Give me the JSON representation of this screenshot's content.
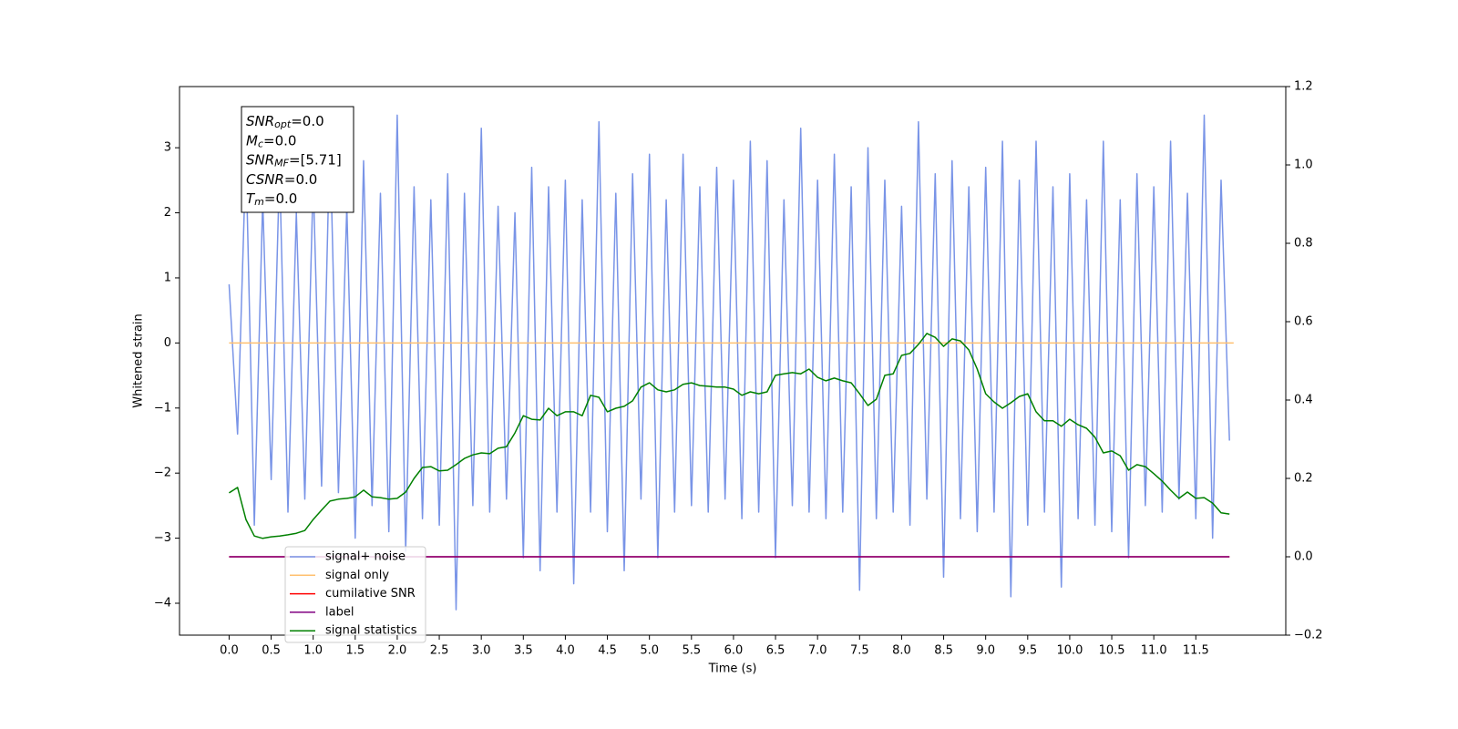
{
  "chart_data": {
    "type": "line",
    "xlabel": "Time (s)",
    "ylabel": "Whitened strain",
    "xlim": [
      -0.59,
      12.57
    ],
    "ylim": [
      -4.49,
      3.94
    ],
    "y2lim": [
      -0.2,
      1.2
    ],
    "xticks": [
      {
        "value": 0,
        "label": "0.0"
      },
      0.5,
      {
        "value": 1,
        "label": "1.0"
      },
      1.5,
      {
        "value": 2,
        "label": "2.0"
      },
      2.5,
      {
        "value": 3,
        "label": "3.0"
      },
      3.5,
      {
        "value": 4,
        "label": "4.0"
      },
      4.5,
      {
        "value": 5,
        "label": "5.0"
      },
      5.5,
      {
        "value": 6,
        "label": "6.0"
      },
      6.5,
      {
        "value": 7,
        "label": "7.0"
      },
      7.5,
      {
        "value": 8,
        "label": "8.0"
      },
      8.5,
      {
        "value": 9,
        "label": "9.0"
      },
      9.5,
      {
        "value": 10,
        "label": "10.0"
      },
      10.5,
      {
        "value": 11,
        "label": "11.0"
      },
      11.5
    ],
    "yticks": [
      {
        "value": -4,
        "label": "−4"
      },
      {
        "value": -3,
        "label": "−3"
      },
      {
        "value": -2,
        "label": "−2"
      },
      {
        "value": -1,
        "label": "−1"
      },
      0,
      1,
      2,
      3
    ],
    "y2ticks": [
      {
        "value": -0.2,
        "label": "−0.2"
      },
      {
        "value": 0,
        "label": "0.0"
      },
      0.2,
      0.4,
      0.6,
      0.8,
      {
        "value": 1,
        "label": "1.0"
      },
      1.2
    ],
    "legend_loc": "lower left",
    "annotations": [
      {
        "symbol": "SNR",
        "subscript": "opt",
        "text": "=0.0"
      },
      {
        "symbol": "M",
        "subscript": "c",
        "text": "=0.0"
      },
      {
        "symbol": "SNR",
        "subscript": "MF",
        "text": "=[5.71]"
      },
      {
        "symbol": "CSNR",
        "subscript": "",
        "text": "=0.0"
      },
      {
        "symbol": "T",
        "subscript": "m",
        "text": "=0.0"
      }
    ],
    "x": [
      0,
      0.1,
      0.2,
      0.3,
      0.4,
      0.5,
      0.6,
      0.7,
      0.8,
      0.9,
      1,
      1.1,
      1.2,
      1.3,
      1.4,
      1.5,
      1.6,
      1.7,
      1.8,
      1.9,
      2,
      2.1,
      2.2,
      2.3,
      2.4,
      2.5,
      2.6,
      2.7,
      2.8,
      2.9,
      3,
      3.1,
      3.2,
      3.3,
      3.4,
      3.5,
      3.6,
      3.7,
      3.8,
      3.9,
      4,
      4.1,
      4.2,
      4.3,
      4.4,
      4.5,
      4.6,
      4.7,
      4.8,
      4.9,
      5,
      5.1,
      5.2,
      5.3,
      5.4,
      5.5,
      5.6,
      5.7,
      5.8,
      5.9,
      6,
      6.1,
      6.2,
      6.3,
      6.4,
      6.5,
      6.6,
      6.7,
      6.8,
      6.9,
      7,
      7.1,
      7.2,
      7.3,
      7.4,
      7.5,
      7.6,
      7.7,
      7.8,
      7.9,
      8,
      8.1,
      8.2,
      8.3,
      8.4,
      8.5,
      8.6,
      8.7,
      8.8,
      8.9,
      9,
      9.1,
      9.2,
      9.3,
      9.4,
      9.5,
      9.6,
      9.7,
      9.8,
      9.9,
      10,
      10.1,
      10.2,
      10.3,
      10.4,
      10.5,
      10.6,
      10.7,
      10.8,
      10.9,
      11,
      11.1,
      11.2,
      11.3,
      11.4,
      11.5,
      11.6,
      11.7,
      11.8,
      11.9
    ],
    "series": [
      {
        "name": "signal+ noise",
        "color": "#7994e7",
        "values": [
          0.9,
          -1.4,
          2.9,
          -2.8,
          2.2,
          -2.1,
          2.7,
          -2.6,
          2.0,
          -2.4,
          2.5,
          -2.2,
          3.2,
          -2.3,
          2.1,
          -3.0,
          2.8,
          -2.5,
          2.3,
          -2.9,
          3.5,
          -3.2,
          2.4,
          -2.7,
          2.2,
          -2.8,
          2.6,
          -4.1,
          2.3,
          -2.5,
          3.3,
          -2.6,
          2.1,
          -2.4,
          2.0,
          -3.3,
          2.7,
          -3.5,
          2.4,
          -2.6,
          2.5,
          -3.7,
          2.2,
          -2.6,
          3.4,
          -2.9,
          2.3,
          -3.5,
          2.6,
          -2.4,
          2.9,
          -3.3,
          2.2,
          -2.6,
          2.9,
          -2.5,
          2.4,
          -2.6,
          2.7,
          -2.4,
          2.5,
          -2.7,
          3.1,
          -2.6,
          2.8,
          -3.3,
          2.2,
          -2.5,
          3.3,
          -2.6,
          2.5,
          -2.7,
          2.9,
          -2.6,
          2.4,
          -3.8,
          3.0,
          -2.7,
          2.5,
          -2.6,
          2.1,
          -2.8,
          3.4,
          -2.4,
          2.6,
          -3.6,
          2.8,
          -2.7,
          2.4,
          -2.9,
          2.7,
          -2.6,
          3.1,
          -3.9,
          2.5,
          -2.8,
          3.1,
          -2.6,
          2.4,
          -3.75,
          2.6,
          -2.7,
          2.2,
          -2.8,
          3.1,
          -2.9,
          2.2,
          -3.3,
          2.6,
          -2.5,
          2.4,
          -2.6,
          3.1,
          -2.4,
          2.3,
          -2.7,
          3.5,
          -3.0,
          2.5,
          -1.5
        ]
      },
      {
        "name": "signal only",
        "color": "#ffc070",
        "x": [
          0,
          11.95
        ],
        "values": [
          0,
          0
        ]
      },
      {
        "name": "cumilative SNR",
        "color": "red",
        "axis": "y2",
        "x": [
          0,
          11.9
        ],
        "values": [
          0,
          0
        ]
      },
      {
        "name": "label",
        "color": "purple",
        "axis": "y2",
        "x": [
          0,
          11.9
        ],
        "values": [
          0,
          0
        ]
      },
      {
        "name": "signal statistics",
        "color": "green",
        "axis": "y2",
        "values": [
          0.163,
          0.177,
          0.095,
          0.053,
          0.047,
          0.051,
          0.053,
          0.056,
          0.06,
          0.067,
          0.095,
          0.119,
          0.142,
          0.147,
          0.149,
          0.153,
          0.17,
          0.153,
          0.151,
          0.147,
          0.149,
          0.165,
          0.2,
          0.228,
          0.23,
          0.219,
          0.221,
          0.235,
          0.251,
          0.26,
          0.265,
          0.263,
          0.277,
          0.281,
          0.316,
          0.36,
          0.351,
          0.349,
          0.379,
          0.36,
          0.37,
          0.37,
          0.36,
          0.412,
          0.407,
          0.37,
          0.379,
          0.384,
          0.398,
          0.433,
          0.444,
          0.426,
          0.421,
          0.426,
          0.44,
          0.444,
          0.437,
          0.435,
          0.433,
          0.433,
          0.428,
          0.412,
          0.421,
          0.416,
          0.421,
          0.463,
          0.467,
          0.47,
          0.467,
          0.479,
          0.458,
          0.449,
          0.456,
          0.449,
          0.444,
          0.416,
          0.386,
          0.402,
          0.463,
          0.467,
          0.514,
          0.519,
          0.542,
          0.57,
          0.56,
          0.537,
          0.556,
          0.551,
          0.528,
          0.479,
          0.416,
          0.395,
          0.379,
          0.393,
          0.409,
          0.416,
          0.37,
          0.347,
          0.347,
          0.333,
          0.351,
          0.337,
          0.328,
          0.305,
          0.265,
          0.27,
          0.258,
          0.221,
          0.235,
          0.23,
          0.212,
          0.193,
          0.17,
          0.149,
          0.165,
          0.149,
          0.151,
          0.137,
          0.112,
          0.109
        ]
      }
    ]
  }
}
